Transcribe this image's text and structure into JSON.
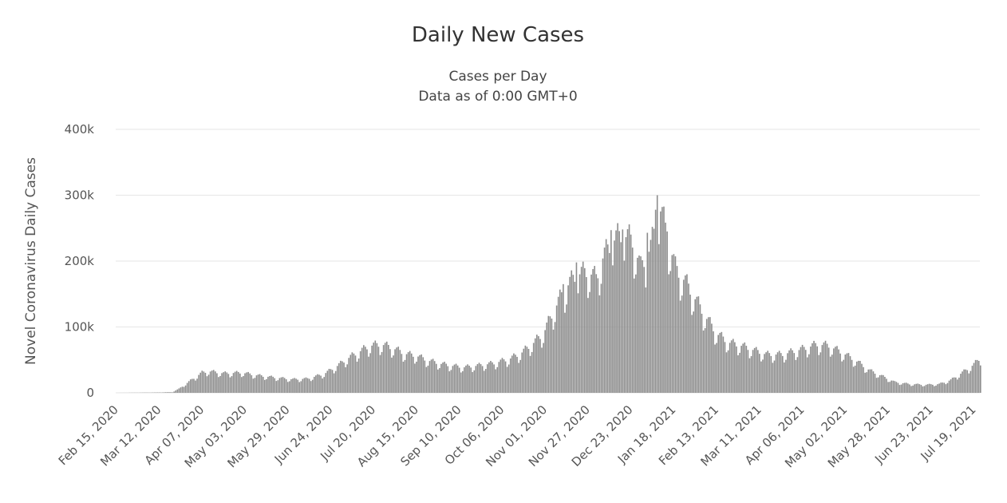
{
  "chart_data": {
    "type": "bar",
    "title": "Daily New Cases",
    "subtitle_lines": [
      "Cases per Day",
      "Data as of 0:00 GMT+0"
    ],
    "ylabel": "Novel Coronavirus Daily Cases",
    "ylim": [
      0,
      400000
    ],
    "y_ticks": [
      0,
      100000,
      200000,
      300000,
      400000
    ],
    "y_tick_labels": [
      "0",
      "100k",
      "200k",
      "300k",
      "400k"
    ],
    "x_range": [
      "2020-02-15",
      "2021-07-23"
    ],
    "x_tick_labels": [
      "Feb 15, 2020",
      "Mar 12, 2020",
      "Apr 07, 2020",
      "May 03, 2020",
      "May 29, 2020",
      "Jun 24, 2020",
      "Jul 20, 2020",
      "Aug 15, 2020",
      "Sep 10, 2020",
      "Oct 06, 2020",
      "Nov 01, 2020",
      "Nov 27, 2020",
      "Dec 23, 2020",
      "Jan 18, 2021",
      "Feb 13, 2021",
      "Mar 11, 2021",
      "Apr 06, 2021",
      "May 02, 2021",
      "May 28, 2021",
      "Jun 23, 2021",
      "Jul 19, 2021"
    ],
    "x_tick_dates": [
      "2020-02-15",
      "2020-03-12",
      "2020-04-07",
      "2020-05-03",
      "2020-05-29",
      "2020-06-24",
      "2020-07-20",
      "2020-08-15",
      "2020-09-10",
      "2020-10-06",
      "2020-11-01",
      "2020-11-27",
      "2020-12-23",
      "2021-01-18",
      "2021-02-13",
      "2021-03-11",
      "2021-04-06",
      "2021-05-02",
      "2021-05-28",
      "2021-06-23",
      "2021-07-19"
    ],
    "grid": true,
    "legend": "none",
    "bar_color": "#8c8c8c",
    "series_points": [
      [
        "2020-02-15",
        0
      ],
      [
        "2020-03-10",
        500
      ],
      [
        "2020-03-20",
        1000
      ],
      [
        "2020-03-24",
        6000
      ],
      [
        "2020-04-01",
        20000
      ],
      [
        "2020-04-07",
        30000
      ],
      [
        "2020-04-11",
        32000
      ],
      [
        "2020-04-20",
        29000
      ],
      [
        "2020-05-01",
        30000
      ],
      [
        "2020-05-10",
        26000
      ],
      [
        "2020-05-20",
        23000
      ],
      [
        "2020-06-01",
        20000
      ],
      [
        "2020-06-10",
        21000
      ],
      [
        "2020-06-20",
        28000
      ],
      [
        "2020-06-28",
        40000
      ],
      [
        "2020-07-05",
        52000
      ],
      [
        "2020-07-12",
        62000
      ],
      [
        "2020-07-18",
        70000
      ],
      [
        "2020-07-25",
        72000
      ],
      [
        "2020-08-01",
        66000
      ],
      [
        "2020-08-08",
        58000
      ],
      [
        "2020-08-15",
        55000
      ],
      [
        "2020-08-22",
        48000
      ],
      [
        "2020-08-30",
        43000
      ],
      [
        "2020-09-06",
        40000
      ],
      [
        "2020-09-13",
        38000
      ],
      [
        "2020-09-20",
        40000
      ],
      [
        "2020-10-01",
        44000
      ],
      [
        "2020-10-10",
        50000
      ],
      [
        "2020-10-17",
        58000
      ],
      [
        "2020-10-24",
        72000
      ],
      [
        "2020-10-31",
        88000
      ],
      [
        "2020-11-05",
        115000
      ],
      [
        "2020-11-10",
        140000
      ],
      [
        "2020-11-15",
        160000
      ],
      [
        "2020-11-20",
        175000
      ],
      [
        "2020-11-27",
        180000
      ],
      [
        "2020-12-02",
        170000
      ],
      [
        "2020-12-06",
        200000
      ],
      [
        "2020-12-12",
        225000
      ],
      [
        "2020-12-18",
        235000
      ],
      [
        "2020-12-24",
        225000
      ],
      [
        "2020-12-29",
        185000
      ],
      [
        "2021-01-04",
        215000
      ],
      [
        "2021-01-08",
        255000
      ],
      [
        "2021-01-10",
        270000
      ],
      [
        "2021-01-14",
        235000
      ],
      [
        "2021-01-19",
        185000
      ],
      [
        "2021-01-25",
        165000
      ],
      [
        "2021-02-01",
        135000
      ],
      [
        "2021-02-07",
        110000
      ],
      [
        "2021-02-13",
        88000
      ],
      [
        "2021-02-20",
        75000
      ],
      [
        "2021-02-28",
        70000
      ],
      [
        "2021-03-08",
        63000
      ],
      [
        "2021-03-15",
        57000
      ],
      [
        "2021-03-25",
        57000
      ],
      [
        "2021-04-06",
        65000
      ],
      [
        "2021-04-15",
        72000
      ],
      [
        "2021-04-22",
        70000
      ],
      [
        "2021-05-02",
        57000
      ],
      [
        "2021-05-10",
        45000
      ],
      [
        "2021-05-17",
        33000
      ],
      [
        "2021-05-25",
        24000
      ],
      [
        "2021-06-01",
        16000
      ],
      [
        "2021-06-10",
        13000
      ],
      [
        "2021-06-20",
        12000
      ],
      [
        "2021-06-28",
        13000
      ],
      [
        "2021-07-05",
        19000
      ],
      [
        "2021-07-12",
        30000
      ],
      [
        "2021-07-19",
        42000
      ],
      [
        "2021-07-23",
        52000
      ]
    ],
    "spikes": [
      [
        "2021-01-08",
        300000
      ],
      [
        "2021-01-07",
        278000
      ],
      [
        "2020-12-18",
        248000
      ],
      [
        "2020-12-11",
        247000
      ],
      [
        "2020-11-20",
        198000
      ],
      [
        "2020-11-12",
        165000
      ],
      [
        "2021-01-14",
        245000
      ],
      [
        "2021-01-02",
        243000
      ]
    ]
  }
}
